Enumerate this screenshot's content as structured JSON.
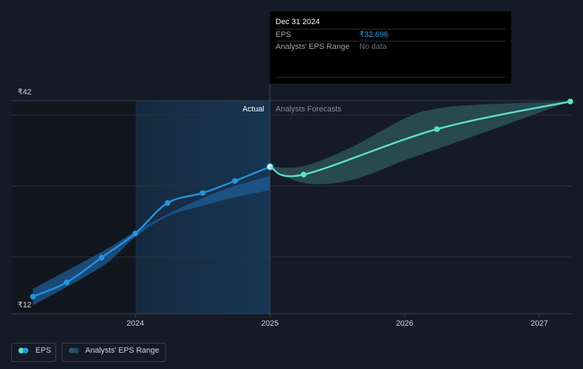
{
  "chart_data": {
    "type": "line",
    "xlim": [
      2023.08,
      2027.24
    ],
    "xticks": [
      2024,
      2025,
      2026,
      2027
    ],
    "ylim": [
      12,
      42
    ],
    "yticks": [
      {
        "value": 12,
        "label": "₹12"
      },
      {
        "value": 42,
        "label": "₹42"
      }
    ],
    "ygrid": [
      20,
      30,
      40
    ],
    "region_labels": [
      "Actual",
      "Analysts Forecasts"
    ],
    "series": [
      {
        "name": "EPS",
        "color": "#2394df",
        "x": [
          2023.24,
          2023.49,
          2023.75,
          2024.0,
          2024.24,
          2024.5,
          2024.74,
          2025.0
        ],
        "values": [
          14.4,
          16.4,
          19.9,
          23.3,
          27.6,
          29.0,
          30.7,
          32.696
        ]
      },
      {
        "color": "#5ee0c9",
        "x": [
          2025.0,
          2025.25,
          2026.24,
          2027.23
        ],
        "values": [
          32.696,
          31.6,
          38.0,
          41.9
        ]
      }
    ],
    "range": {
      "name": "Analysts' EPS Range",
      "color": "#2a4a5e",
      "x": [
        2023.24,
        2023.75,
        2024.0,
        2024.24,
        2024.5,
        2024.74,
        2025.0,
        null,
        2025.0,
        2025.25,
        2025.6,
        2026.0,
        2026.24,
        2026.6,
        2027.23
      ],
      "low": [
        13.2,
        18.6,
        22.8,
        25.7,
        27.2,
        28.4,
        29.4,
        null,
        32.7,
        30.4,
        30.8,
        33.6,
        35.2,
        37.6,
        41.9
      ],
      "high": [
        15.5,
        20.7,
        23.6,
        26.0,
        28.3,
        30.0,
        31.4,
        null,
        32.7,
        32.8,
        35.4,
        39.5,
        40.9,
        41.5,
        41.9
      ]
    },
    "tooltip": {
      "title": "Dec 31 2024",
      "rows": [
        {
          "label": "EPS",
          "value": "₹32.696"
        },
        {
          "label": "Analysts' EPS Range",
          "value": "No data"
        }
      ]
    }
  }
}
